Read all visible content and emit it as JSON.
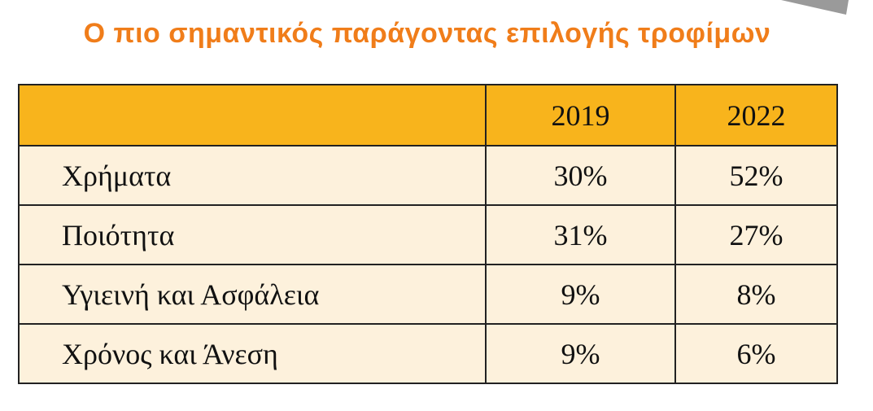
{
  "title": "Ο πιο σημαντικός παράγοντας επιλογής τροφίμων",
  "table": {
    "columns": [
      "2019",
      "2022"
    ],
    "rows": [
      {
        "label": "Χρήματα",
        "values": [
          "30%",
          "52%"
        ]
      },
      {
        "label": "Ποιότητα",
        "values": [
          "31%",
          "27%"
        ]
      },
      {
        "label": "Υγιεινή και Ασφάλεια",
        "values": [
          "9%",
          "8%"
        ]
      },
      {
        "label": "Χρόνος και Άνεση",
        "values": [
          "9%",
          "6%"
        ]
      }
    ]
  }
}
